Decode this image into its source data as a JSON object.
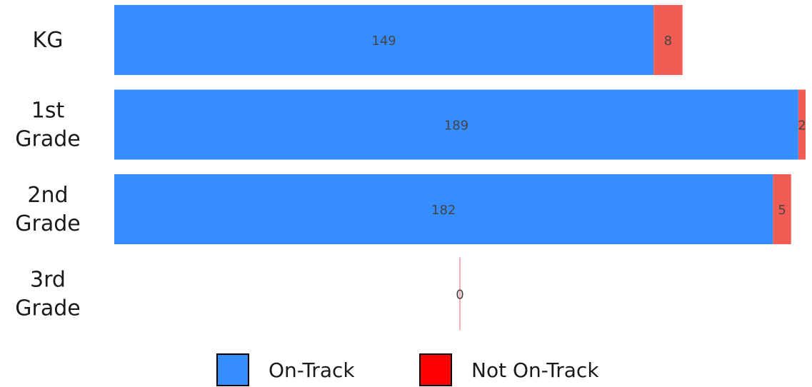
{
  "chart_data": {
    "type": "bar",
    "orientation": "horizontal",
    "stacked": true,
    "categories": [
      "KG",
      "1st Grade",
      "2nd Grade",
      "3rd Grade"
    ],
    "series": [
      {
        "name": "On-Track",
        "values": [
          149,
          189,
          182,
          0
        ],
        "color": "#368dff"
      },
      {
        "name": "Not On-Track",
        "values": [
          8,
          2,
          5,
          0
        ],
        "color": "#f25c54"
      }
    ],
    "legend": {
      "position": "bottom",
      "items": [
        {
          "label": "On-Track",
          "swatch_color": "#368dff"
        },
        {
          "label": "Not On-Track",
          "swatch_color": "#ff0000"
        }
      ]
    },
    "grid": false,
    "axes_visible": false,
    "title": "",
    "xlabel": "",
    "ylabel": ""
  }
}
